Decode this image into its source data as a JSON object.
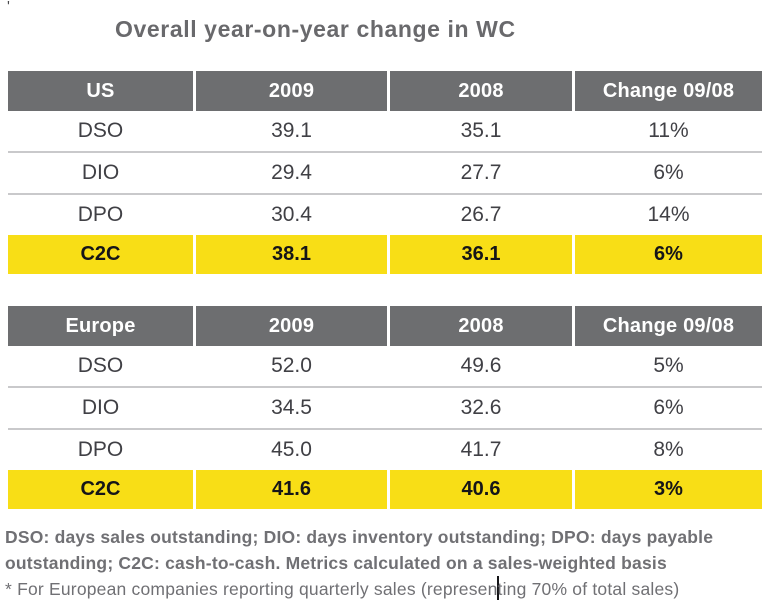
{
  "meta": {
    "stray_mark": "'"
  },
  "title": "Overall year-on-year change in WC",
  "colors": {
    "header_bg": "#6d6e70",
    "header_text": "#ffffff",
    "highlight_bg": "#f8de16",
    "body_text": "#404045",
    "title_text": "#69696c",
    "separator": "#c9c9cb",
    "footnote_text": "#707074"
  },
  "tables": [
    {
      "region": "US",
      "headers": [
        "US",
        "2009",
        "2008",
        "Change 09/08"
      ],
      "rows": [
        {
          "metric": "DSO",
          "y2009": "39.1",
          "y2008": "35.1",
          "change": "11%"
        },
        {
          "metric": "DIO",
          "y2009": "29.4",
          "y2008": "27.7",
          "change": "6%"
        },
        {
          "metric": "DPO",
          "y2009": "30.4",
          "y2008": "26.7",
          "change": "14%"
        },
        {
          "metric": "C2C",
          "y2009": "38.1",
          "y2008": "36.1",
          "change": "6%",
          "highlighted": true
        }
      ]
    },
    {
      "region": "Europe",
      "headers": [
        "Europe",
        "2009",
        "2008",
        "Change 09/08"
      ],
      "rows": [
        {
          "metric": "DSO",
          "y2009": "52.0",
          "y2008": "49.6",
          "change": "5%"
        },
        {
          "metric": "DIO",
          "y2009": "34.5",
          "y2008": "32.6",
          "change": "6%"
        },
        {
          "metric": "DPO",
          "y2009": "45.0",
          "y2008": "41.7",
          "change": "8%"
        },
        {
          "metric": "C2C",
          "y2009": "41.6",
          "y2008": "40.6",
          "change": "3%",
          "highlighted": true
        }
      ]
    }
  ],
  "footnotes": {
    "line1": "DSO: days sales outstanding; DIO: days inventory outstanding; DPO: days payable",
    "line2": "outstanding; C2C: cash-to-cash. Metrics calculated on a sales-weighted basis",
    "line3_before_caret": "* For European companies reporting quarterly sales (represen",
    "line3_after_caret": "ting 70% of total sales)"
  }
}
